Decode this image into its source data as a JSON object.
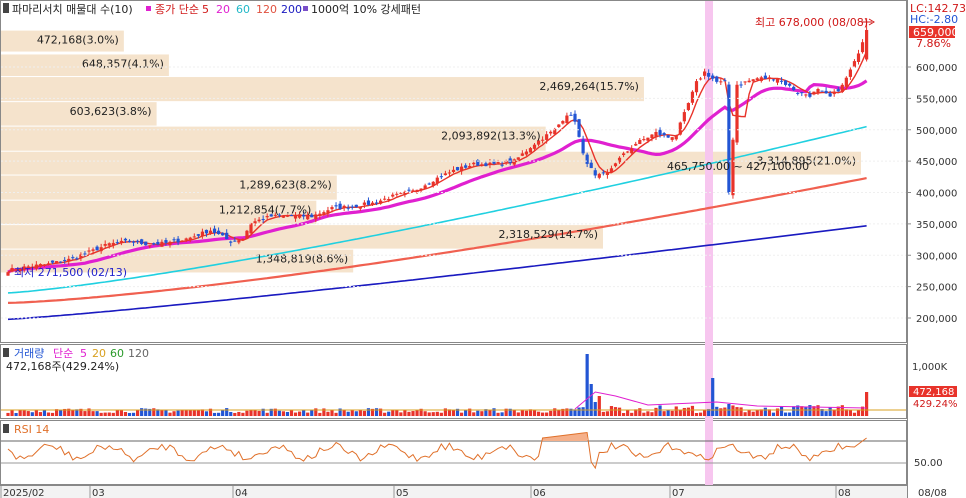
{
  "header": {
    "title": "파마리서치 매물대 수(10)",
    "ma_prefix": "종가 단순",
    "ma_periods": [
      "5",
      "20",
      "60",
      "120",
      "200"
    ],
    "pattern_label": "1000억 10% 강세패턴"
  },
  "right_info": {
    "lc": "LC:142.73",
    "hc": "HC:-2.80",
    "last_price": "659,000",
    "last_pct": "7.86%"
  },
  "annotations": {
    "high_label": "최고 678,000 (08/08)",
    "low_label": "최저 271,500 (02/13)",
    "range_label": "465,750.00 ~ 427,100.00"
  },
  "volume_panel": {
    "label": "거래량",
    "ma_prefix": "단순",
    "ma_periods": [
      "5",
      "20",
      "60",
      "120"
    ],
    "summary": "472,168주(429.24%)",
    "axis_label": "1,000K",
    "last_value": "472,168",
    "last_pct": "429.24%"
  },
  "rsi_panel": {
    "label": "RSI 14",
    "axis_label": "50.00"
  },
  "colors": {
    "up": "#e8332a",
    "down": "#2255d4",
    "ma5": "#e8332a",
    "ma20": "#e020d0",
    "ma60": "#20d0e0",
    "ma120": "#f06050",
    "ma200": "#1a1ac0",
    "profile": "#f5e3cc",
    "highlight": "#f7c6ef"
  },
  "chart_data": {
    "type": "candlestick",
    "title": "파마리서치 매물대 수(10)",
    "x_labels": [
      "2025/02",
      "03",
      "04",
      "05",
      "06",
      "07",
      "08",
      "08/08"
    ],
    "y_ticks": [
      "600,000",
      "550,000",
      "500,000",
      "450,000",
      "400,000",
      "350,000",
      "300,000",
      "250,000",
      "200,000"
    ],
    "y_range": [
      150000,
      690000
    ],
    "volume_profile": [
      {
        "label": "472,168(3.0%)",
        "low": 623000,
        "high": 658000,
        "share": 3.0
      },
      {
        "label": "648,357(4.1%)",
        "low": 584000,
        "high": 620000,
        "share": 4.1
      },
      {
        "label": "2,469,264(15.7%)",
        "low": 544000,
        "high": 584000,
        "share": 15.7
      },
      {
        "label": "603,623(3.8%)",
        "low": 505000,
        "high": 544000,
        "share": 3.8
      },
      {
        "label": "2,093,892(13.3%)",
        "low": 465000,
        "high": 505000,
        "share": 13.3
      },
      {
        "label": "3,314,895(21.0%)",
        "low": 427000,
        "high": 465000,
        "share": 21.0
      },
      {
        "label": "1,289,623(8.2%)",
        "low": 387000,
        "high": 427000,
        "share": 8.2
      },
      {
        "label": "1,212,854(7.7%)",
        "low": 348000,
        "high": 387000,
        "share": 7.7
      },
      {
        "label": "2,318,529(14.7%)",
        "low": 309000,
        "high": 348000,
        "share": 14.7
      },
      {
        "label": "1,348,819(8.6%)",
        "low": 271000,
        "high": 309000,
        "share": 8.6
      }
    ],
    "close_path": [
      [
        0,
        276000
      ],
      [
        5,
        282000
      ],
      [
        10,
        286000
      ],
      [
        15,
        293000
      ],
      [
        20,
        305000
      ],
      [
        25,
        318000
      ],
      [
        30,
        322000
      ],
      [
        35,
        317000
      ],
      [
        40,
        320000
      ],
      [
        45,
        328000
      ],
      [
        50,
        340000
      ],
      [
        55,
        322000
      ],
      [
        58,
        327000
      ],
      [
        60,
        352000
      ],
      [
        65,
        362000
      ],
      [
        70,
        363000
      ],
      [
        75,
        362000
      ],
      [
        80,
        375000
      ],
      [
        85,
        378000
      ],
      [
        90,
        383000
      ],
      [
        95,
        394000
      ],
      [
        100,
        402000
      ],
      [
        105,
        420000
      ],
      [
        110,
        435000
      ],
      [
        115,
        445000
      ],
      [
        120,
        445000
      ],
      [
        125,
        450000
      ],
      [
        130,
        478000
      ],
      [
        135,
        500000
      ],
      [
        138,
        525000
      ],
      [
        140,
        515000
      ],
      [
        142,
        460000
      ],
      [
        145,
        425000
      ],
      [
        148,
        430000
      ],
      [
        150,
        448000
      ],
      [
        155,
        478000
      ],
      [
        160,
        495000
      ],
      [
        163,
        488000
      ],
      [
        165,
        492000
      ],
      [
        170,
        575000
      ],
      [
        172,
        592000
      ],
      [
        175,
        576000
      ],
      [
        177,
        575000
      ],
      [
        178,
        400000
      ],
      [
        180,
        572000
      ],
      [
        185,
        582000
      ],
      [
        190,
        582000
      ],
      [
        195,
        560000
      ],
      [
        198,
        555000
      ],
      [
        200,
        563000
      ],
      [
        203,
        552000
      ],
      [
        206,
        570000
      ],
      [
        209,
        607000
      ],
      [
        212,
        659000
      ]
    ],
    "high_point": {
      "value": 678000,
      "date": "08/08"
    },
    "low_point": {
      "value": 271500,
      "date": "02/13"
    }
  }
}
